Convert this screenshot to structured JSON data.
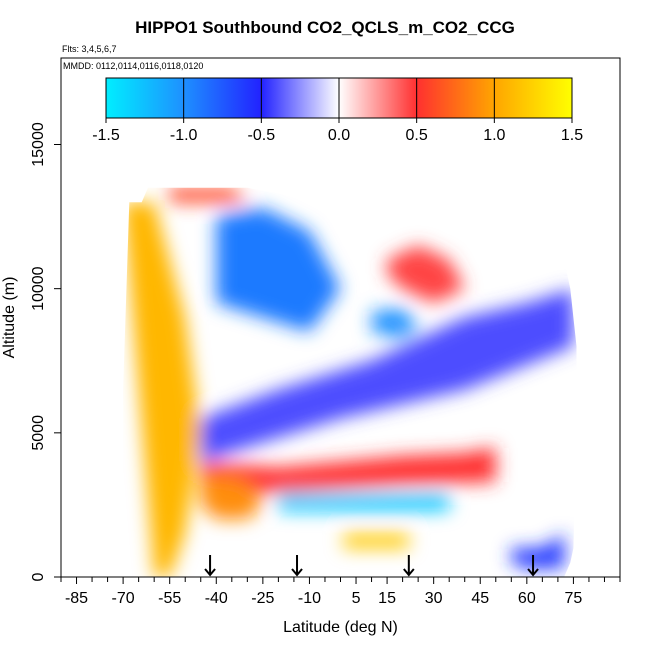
{
  "chart_data": {
    "type": "heatmap",
    "title": "HIPPO1 Southbound CO2_QCLS_m_CO2_CCG",
    "flights_label": "Flts: 3,4,5,6,7",
    "dates_label": "MMDD: 0112,0114,0116,0118,0120",
    "xlabel": "Latitude (deg N)",
    "ylabel": "Altitude (m)",
    "xlim": [
      -90,
      90
    ],
    "ylim": [
      0,
      18000
    ],
    "x_ticks": [
      -85,
      -70,
      -55,
      -40,
      -25,
      -10,
      5,
      15,
      30,
      45,
      60,
      75
    ],
    "x_minor_ticks": [
      -90,
      -80,
      -75,
      -65,
      -60,
      -50,
      -45,
      -35,
      -30,
      -20,
      -15,
      -5,
      0,
      10,
      20,
      25,
      35,
      40,
      50,
      55,
      65,
      70,
      80,
      85,
      90
    ],
    "y_ticks": [
      0,
      5000,
      10000,
      15000
    ],
    "colorbar": {
      "range": [
        -1.5,
        1.5
      ],
      "ticks": [
        "-1.5",
        "-1.0",
        "-0.5",
        "0.0",
        "0.5",
        "1.0",
        "1.5"
      ],
      "colors": [
        "#00eeff",
        "#1e90ff",
        "#2222ff",
        "#ffffff",
        "#ff3030",
        "#ffa500",
        "#ffff00"
      ]
    },
    "flight_arrows_lat": [
      -42,
      -14,
      22,
      62
    ],
    "envelope": {
      "lat": [
        -70,
        -68,
        -66,
        -64,
        -62,
        -60,
        -58,
        -56,
        -54,
        -52,
        -50,
        -45,
        -40,
        -30,
        -20,
        -10,
        0,
        10,
        20,
        30,
        40,
        50,
        60,
        65,
        70,
        72,
        74,
        75,
        76
      ],
      "top": [
        6500,
        13000,
        13000,
        13000,
        13500,
        13500,
        13500,
        13500,
        13500,
        13500,
        13500,
        13500,
        13500,
        13500,
        13300,
        13000,
        13000,
        13000,
        13000,
        13000,
        13000,
        13000,
        13000,
        12500,
        12000,
        11000,
        10000,
        9000,
        8000
      ],
      "bottom": [
        0,
        0,
        0,
        0,
        0,
        0,
        0,
        0,
        0,
        0,
        0,
        0,
        0,
        0,
        0,
        0,
        0,
        0,
        0,
        0,
        0,
        0,
        0,
        0,
        0,
        0,
        500,
        1000,
        5500
      ]
    },
    "features": [
      {
        "name": "south-polar-positive-band",
        "lat": [
          -70,
          -60,
          -50,
          -45,
          -50,
          -55,
          -60
        ],
        "alt": [
          13000,
          13000,
          9000,
          5000,
          1500,
          0,
          0
        ],
        "value": 1.1
      },
      {
        "name": "upper-trop-negative-core",
        "lat": [
          -40,
          -25,
          -10,
          0,
          -10,
          -25,
          -40
        ],
        "alt": [
          12500,
          12800,
          12000,
          10000,
          8500,
          9000,
          9500
        ],
        "value": -0.9
      },
      {
        "name": "upper-trop-positive-cap",
        "lat": [
          -55,
          -35,
          -30,
          -55
        ],
        "alt": [
          13500,
          13500,
          13000,
          13000
        ],
        "value": 0.6
      },
      {
        "name": "mid-level-negative-band",
        "lat": [
          -45,
          -20,
          10,
          40,
          60,
          75,
          75,
          40,
          0,
          -30,
          -45
        ],
        "alt": [
          5500,
          6500,
          7500,
          9000,
          9500,
          10000,
          8000,
          6500,
          5500,
          4500,
          4000
        ],
        "value": -0.4
      },
      {
        "name": "tropical-positive-patch",
        "lat": [
          15,
          25,
          35,
          40,
          30,
          20,
          15
        ],
        "alt": [
          11000,
          11500,
          11000,
          10000,
          9500,
          10000,
          10500
        ],
        "value": 0.45
      },
      {
        "name": "tropical-negative-spot",
        "lat": [
          10,
          20,
          25,
          20,
          10
        ],
        "alt": [
          9200,
          9300,
          8700,
          8300,
          8500
        ],
        "value": -1.0
      },
      {
        "name": "low-level-positive-band",
        "lat": [
          -45,
          -20,
          0,
          20,
          40,
          50,
          50,
          20,
          -10,
          -30,
          -45
        ],
        "alt": [
          4000,
          3800,
          4000,
          4200,
          4300,
          4500,
          3300,
          3200,
          3000,
          2900,
          3000
        ],
        "value": 0.5
      },
      {
        "name": "boundary-layer-negative-strip",
        "lat": [
          -20,
          0,
          20,
          35,
          35,
          20,
          0,
          -20
        ],
        "alt": [
          2900,
          2900,
          2900,
          2900,
          2300,
          2300,
          2300,
          2300
        ],
        "value": -1.3
      },
      {
        "name": "surface-positive-strip",
        "lat": [
          1,
          10,
          18,
          22,
          22,
          18,
          10,
          1
        ],
        "alt": [
          1500,
          1500,
          1500,
          1500,
          1000,
          1000,
          1000,
          1000
        ],
        "value": 1.2
      },
      {
        "name": "southern-boundary-layer-positive",
        "lat": [
          -45,
          -38,
          -30,
          -25,
          -30,
          -40,
          -45
        ],
        "alt": [
          3500,
          3500,
          3300,
          2500,
          2000,
          2000,
          2500
        ],
        "value": 0.9
      },
      {
        "name": "northern-surface-negative",
        "lat": [
          55,
          65,
          72,
          72,
          60,
          55
        ],
        "alt": [
          1000,
          1000,
          1500,
          300,
          300,
          500
        ],
        "value": -0.6
      }
    ]
  }
}
